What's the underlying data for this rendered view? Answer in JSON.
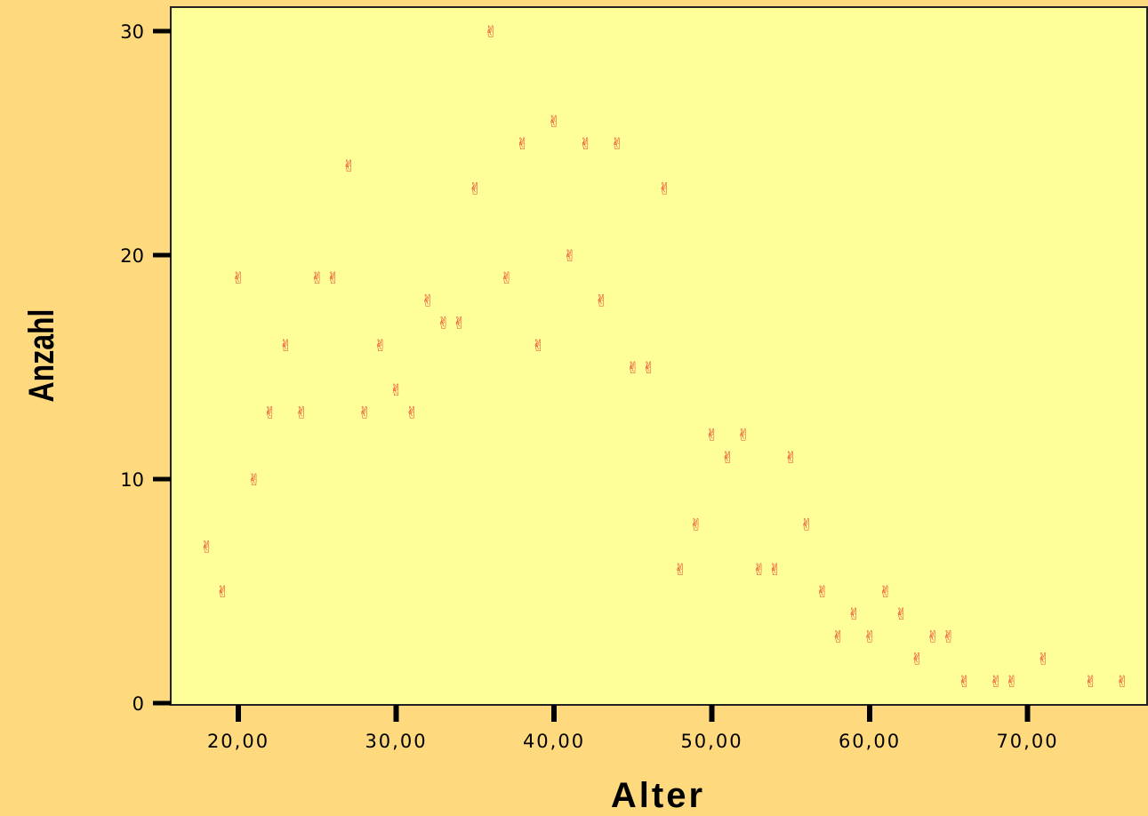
{
  "chart_data": {
    "type": "scatter",
    "xlabel": "Alter",
    "ylabel": "Anzahl",
    "xlim": [
      14,
      77
    ],
    "ylim": [
      0,
      31
    ],
    "x_ticks": [
      20,
      30,
      40,
      50,
      60,
      70
    ],
    "x_tick_labels": [
      "20,00",
      "30,00",
      "40,00",
      "50,00",
      "60,00",
      "70,00"
    ],
    "y_ticks": [
      0,
      10,
      20,
      30
    ],
    "y_tick_labels": [
      "0",
      "10",
      "20",
      "30"
    ],
    "grid": false,
    "marker_symbol": "✌",
    "colors": {
      "background": "#FFD97D",
      "plot_area": "#FFFF99",
      "marker": "#E8402A",
      "axis": "#000000"
    },
    "series": [
      {
        "points": [
          [
            18,
            7
          ],
          [
            19,
            5
          ],
          [
            20,
            19
          ],
          [
            21,
            10
          ],
          [
            22,
            13
          ],
          [
            23,
            16
          ],
          [
            24,
            13
          ],
          [
            25,
            19
          ],
          [
            26,
            19
          ],
          [
            27,
            24
          ],
          [
            28,
            13
          ],
          [
            29,
            16
          ],
          [
            30,
            14
          ],
          [
            31,
            13
          ],
          [
            32,
            18
          ],
          [
            33,
            17
          ],
          [
            34,
            17
          ],
          [
            35,
            23
          ],
          [
            36,
            30
          ],
          [
            37,
            19
          ],
          [
            38,
            25
          ],
          [
            39,
            16
          ],
          [
            40,
            26
          ],
          [
            41,
            20
          ],
          [
            42,
            25
          ],
          [
            43,
            18
          ],
          [
            44,
            25
          ],
          [
            45,
            15
          ],
          [
            46,
            15
          ],
          [
            47,
            23
          ],
          [
            48,
            6
          ],
          [
            49,
            8
          ],
          [
            50,
            12
          ],
          [
            51,
            11
          ],
          [
            52,
            12
          ],
          [
            53,
            6
          ],
          [
            54,
            6
          ],
          [
            55,
            11
          ],
          [
            56,
            8
          ],
          [
            57,
            5
          ],
          [
            58,
            3
          ],
          [
            59,
            4
          ],
          [
            60,
            3
          ],
          [
            61,
            5
          ],
          [
            62,
            4
          ],
          [
            63,
            2
          ],
          [
            64,
            3
          ],
          [
            65,
            3
          ],
          [
            66,
            1
          ],
          [
            68,
            1
          ],
          [
            69,
            1
          ],
          [
            71,
            2
          ],
          [
            74,
            1
          ],
          [
            76,
            1
          ]
        ]
      }
    ]
  }
}
